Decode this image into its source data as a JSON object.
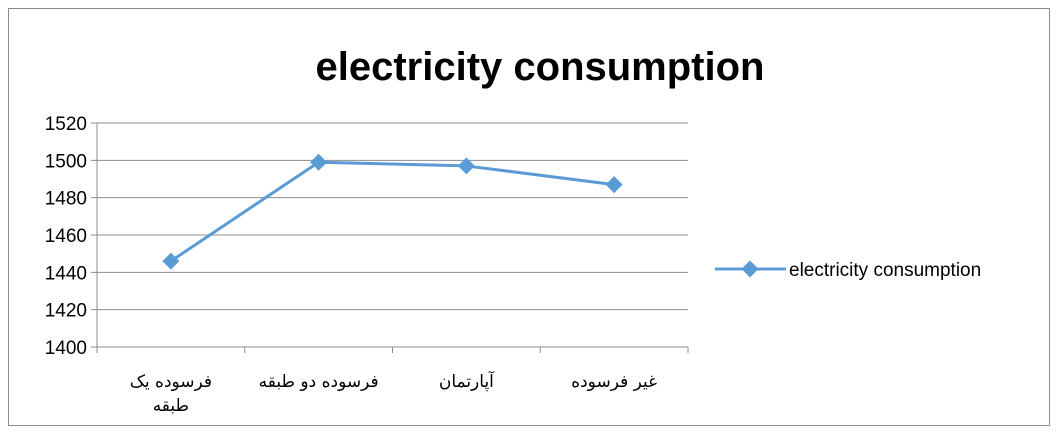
{
  "chart_data": {
    "type": "line",
    "title": "electricity consumption",
    "xlabel": "",
    "ylabel": "",
    "categories": [
      [
        "فرسوده یک",
        "طبقه"
      ],
      [
        "فرسوده دو طبقه"
      ],
      [
        "آپارتمان"
      ],
      [
        "غیر فرسوده"
      ]
    ],
    "series": [
      {
        "name": "electricity consumption",
        "values": [
          1446,
          1499,
          1497,
          1487
        ]
      }
    ],
    "ylim": [
      1400,
      1520
    ],
    "yticks": [
      "1400",
      "1420",
      "1440",
      "1460",
      "1480",
      "1500",
      "1520"
    ],
    "grid": true,
    "legend": "right",
    "colors": {
      "series": "#5b9bd5",
      "grid": "#8c8c8c",
      "border": "#8c8c8c"
    }
  }
}
